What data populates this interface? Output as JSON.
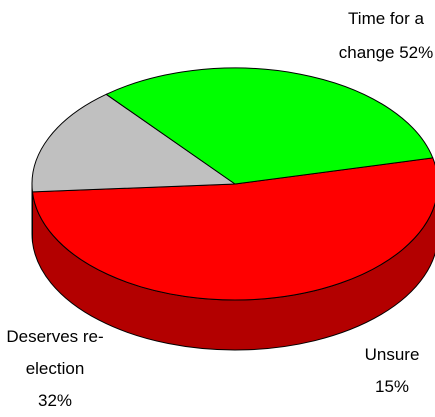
{
  "chart_data": {
    "type": "pie",
    "style": "3d",
    "title": "",
    "slices": [
      {
        "label_lines": [
          "Time for a",
          "change 52%"
        ],
        "label": "Time for a change",
        "value": 52,
        "color": "#ff0000",
        "side_color": "#b30000"
      },
      {
        "label_lines": [
          "Unsure",
          "15%"
        ],
        "label": "Unsure",
        "value": 15,
        "color": "#c0c0c0",
        "side_color": "#606060"
      },
      {
        "label_lines": [
          "Deserves re-",
          "election",
          "32%"
        ],
        "label": "Deserves re-election",
        "value": 32,
        "color": "#00ff00",
        "side_color": "#008000"
      }
    ]
  }
}
